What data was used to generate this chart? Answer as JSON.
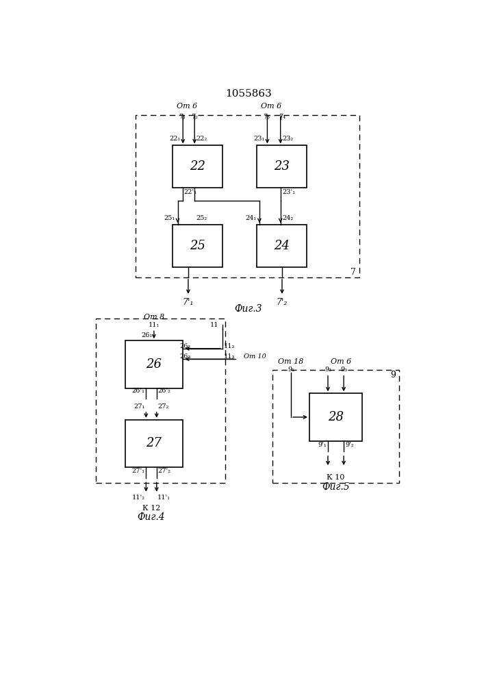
{
  "title": "1055863",
  "fig3_label": "Фиг.3",
  "fig4_label": "Фиг.4",
  "fig5_label": "Фиг.5",
  "bg_color": "#ffffff"
}
